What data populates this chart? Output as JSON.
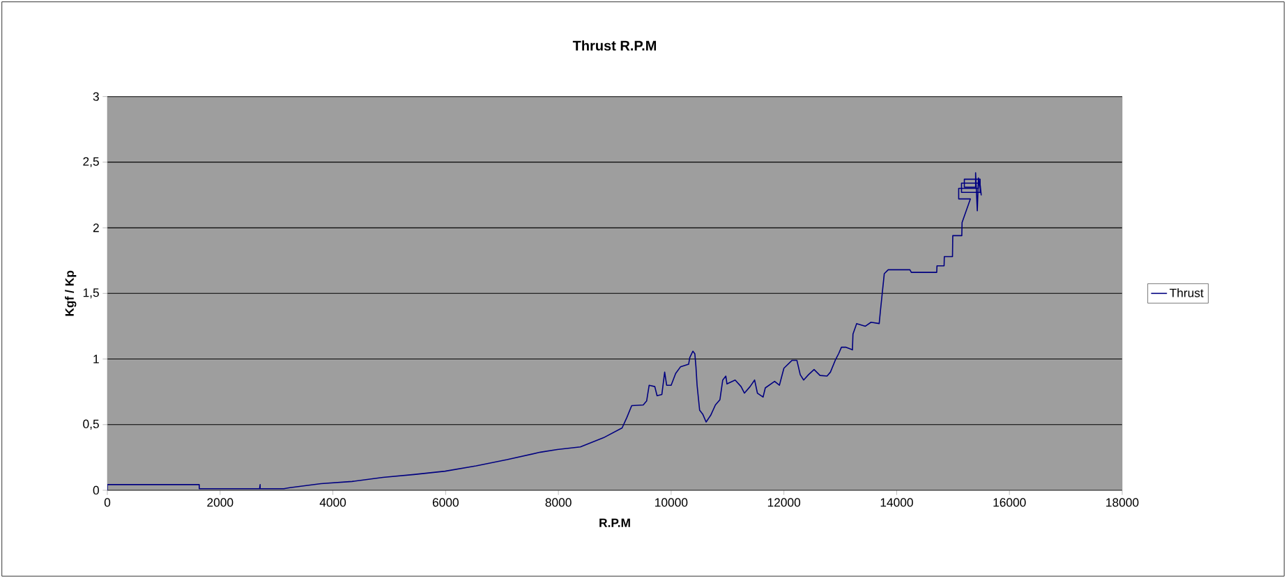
{
  "chart_data": {
    "type": "line",
    "title": "Thrust R.P.M",
    "xlabel": "R.P.M",
    "ylabel": "Kgf /  Kp",
    "xlim": [
      0,
      18000
    ],
    "xticks": [
      0,
      2000,
      4000,
      6000,
      8000,
      10000,
      12000,
      14000,
      16000,
      18000
    ],
    "ylim": [
      0,
      3
    ],
    "yticks": [
      0,
      {
        "value": 0.5,
        "label": "0,5"
      },
      1,
      {
        "value": 1.5,
        "label": "1,5"
      },
      2,
      {
        "value": 2.5,
        "label": "2,5"
      },
      3
    ],
    "grid": "y",
    "legend": "right",
    "marker": "none",
    "line_style": "solid",
    "series": [
      {
        "name": "Thrust",
        "color": "#000080",
        "x": [
          0,
          0,
          1630,
          1630,
          2200,
          2700,
          2710,
          2710,
          3130,
          3240,
          3790,
          4340,
          4890,
          5440,
          5990,
          6540,
          7090,
          7680,
          7980,
          8390,
          8800,
          9130,
          9215,
          9300,
          9505,
          9565,
          9610,
          9710,
          9750,
          9835,
          9885,
          9920,
          10000,
          10080,
          10165,
          10310,
          10330,
          10385,
          10420,
          10440,
          10460,
          10505,
          10560,
          10620,
          10700,
          10785,
          10865,
          10915,
          10970,
          10990,
          11135,
          11240,
          11300,
          11400,
          11480,
          11530,
          11630,
          11670,
          11835,
          11920,
          12000,
          12145,
          12230,
          12290,
          12350,
          12435,
          12535,
          12640,
          12765,
          12825,
          12910,
          12970,
          13020,
          13095,
          13215,
          13225,
          13290,
          13445,
          13545,
          13690,
          13710,
          13780,
          13850,
          14235,
          14260,
          14710,
          14715,
          14841,
          14845,
          14990,
          14995,
          15155,
          15160,
          15307,
          15100,
          15100,
          15450,
          15450,
          15150,
          15150,
          15480,
          15480,
          15200,
          15200,
          15400,
          15400,
          15430,
          15450,
          15500,
          15480
        ],
        "values": [
          0,
          0.043,
          0.043,
          0.012,
          0.012,
          0.012,
          0.043,
          0.012,
          0.012,
          0.02,
          0.05,
          0.067,
          0.098,
          0.12,
          0.145,
          0.186,
          0.233,
          0.29,
          0.31,
          0.33,
          0.4,
          0.475,
          0.555,
          0.645,
          0.65,
          0.68,
          0.8,
          0.79,
          0.72,
          0.73,
          0.9,
          0.8,
          0.8,
          0.89,
          0.94,
          0.96,
          1.01,
          1.06,
          1.04,
          0.94,
          0.8,
          0.61,
          0.58,
          0.52,
          0.57,
          0.65,
          0.69,
          0.84,
          0.87,
          0.81,
          0.84,
          0.79,
          0.74,
          0.79,
          0.84,
          0.74,
          0.71,
          0.78,
          0.83,
          0.8,
          0.93,
          0.99,
          0.99,
          0.88,
          0.84,
          0.88,
          0.92,
          0.875,
          0.87,
          0.9,
          0.99,
          1.04,
          1.09,
          1.09,
          1.07,
          1.19,
          1.27,
          1.25,
          1.28,
          1.27,
          1.36,
          1.65,
          1.68,
          1.68,
          1.66,
          1.66,
          1.71,
          1.71,
          1.78,
          1.78,
          1.94,
          1.94,
          2.04,
          2.22,
          2.22,
          2.3,
          2.3,
          2.34,
          2.34,
          2.27,
          2.27,
          2.37,
          2.37,
          2.31,
          2.31,
          2.42,
          2.13,
          2.38,
          2.25,
          2.33
        ]
      }
    ]
  }
}
